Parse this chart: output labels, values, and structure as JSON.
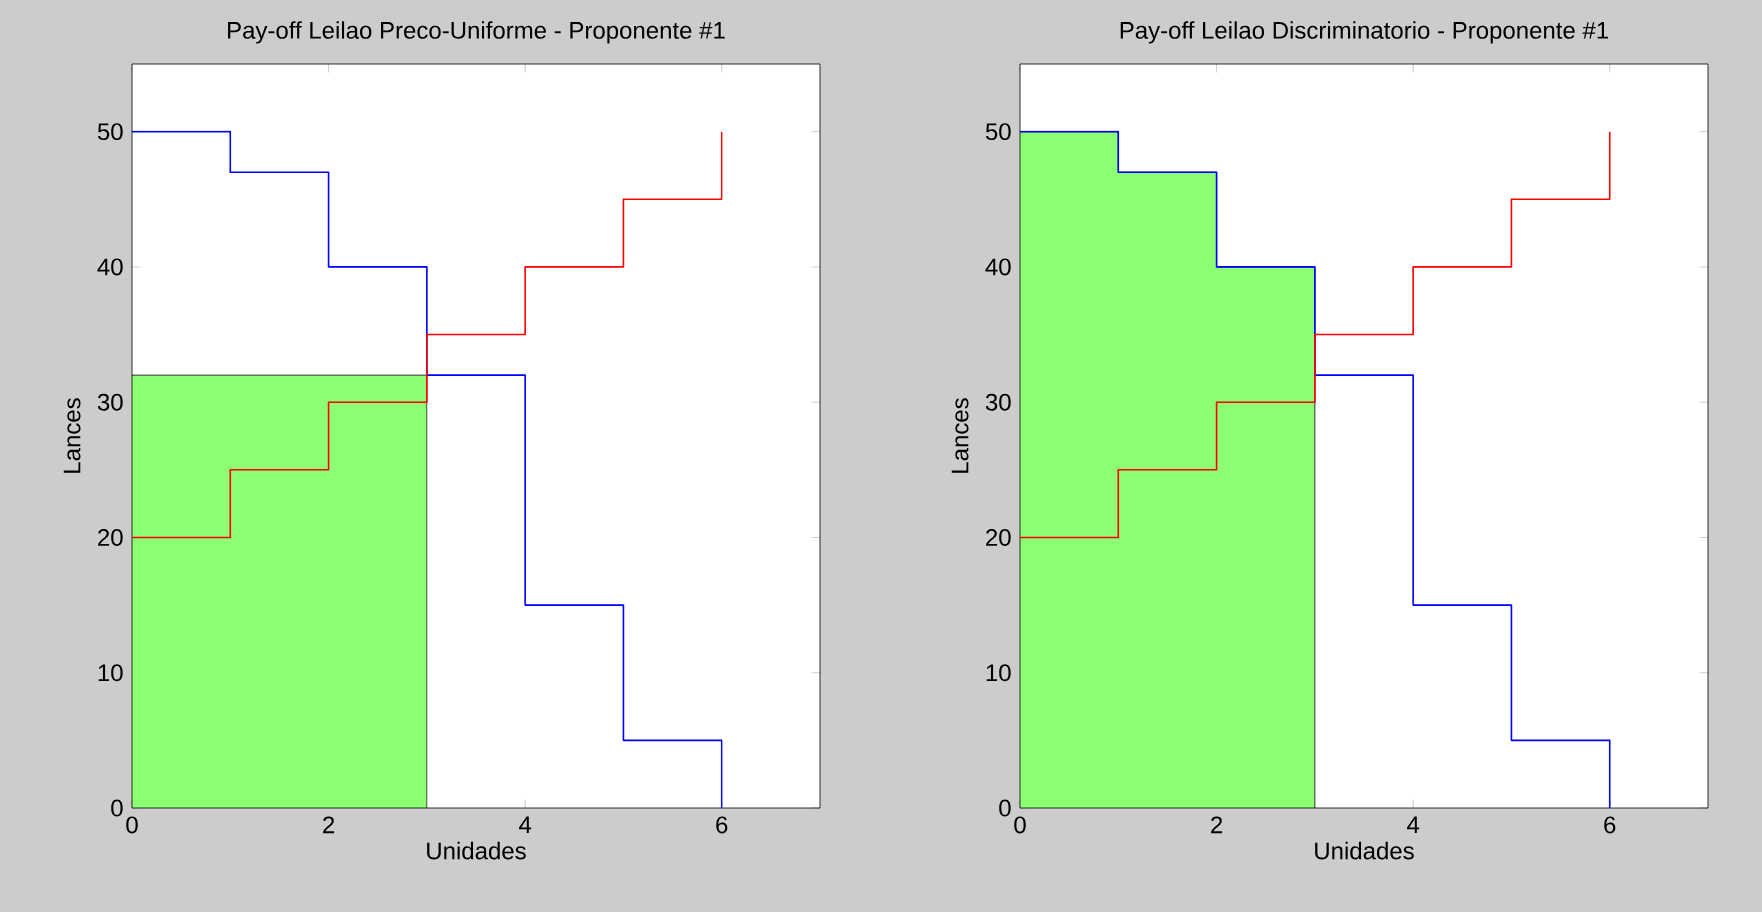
{
  "chart_data": [
    {
      "type": "step",
      "title": "Pay-off Leilao Preco-Uniforme - Proponente #1",
      "xlabel": "Unidades",
      "ylabel": "Lances",
      "xlim": [
        0,
        7
      ],
      "ylim": [
        0,
        55
      ],
      "xticks": [
        0,
        2,
        4,
        6
      ],
      "yticks": [
        0,
        10,
        20,
        30,
        40,
        50
      ],
      "grid": false,
      "series": [
        {
          "type": "area",
          "color": "#8cff73",
          "x": [
            0,
            3
          ],
          "values": [
            32,
            32
          ]
        },
        {
          "color": "#0000ff",
          "x": [
            0,
            1,
            2,
            3,
            4,
            5,
            6
          ],
          "values": [
            50,
            47,
            40,
            32,
            15,
            5,
            0
          ]
        },
        {
          "color": "#ff0000",
          "x": [
            0,
            1,
            2,
            3,
            4,
            5,
            6
          ],
          "values": [
            20,
            25,
            30,
            35,
            40,
            45,
            50
          ]
        }
      ]
    },
    {
      "type": "step",
      "title": "Pay-off Leilao Discriminatorio - Proponente #1",
      "xlabel": "Unidades",
      "ylabel": "Lances",
      "xlim": [
        0,
        7
      ],
      "ylim": [
        0,
        55
      ],
      "xticks": [
        0,
        2,
        4,
        6
      ],
      "yticks": [
        0,
        10,
        20,
        30,
        40,
        50
      ],
      "grid": false,
      "series": [
        {
          "type": "area",
          "color": "#8cff73",
          "x": [
            0,
            1,
            1,
            2,
            2,
            3
          ],
          "values": [
            50,
            50,
            47,
            47,
            40,
            40
          ]
        },
        {
          "color": "#0000ff",
          "x": [
            0,
            1,
            2,
            3,
            4,
            5,
            6
          ],
          "values": [
            50,
            47,
            40,
            32,
            15,
            5,
            0
          ]
        },
        {
          "color": "#ff0000",
          "x": [
            0,
            1,
            2,
            3,
            4,
            5,
            6
          ],
          "values": [
            20,
            25,
            30,
            35,
            40,
            45,
            50
          ]
        }
      ]
    }
  ]
}
